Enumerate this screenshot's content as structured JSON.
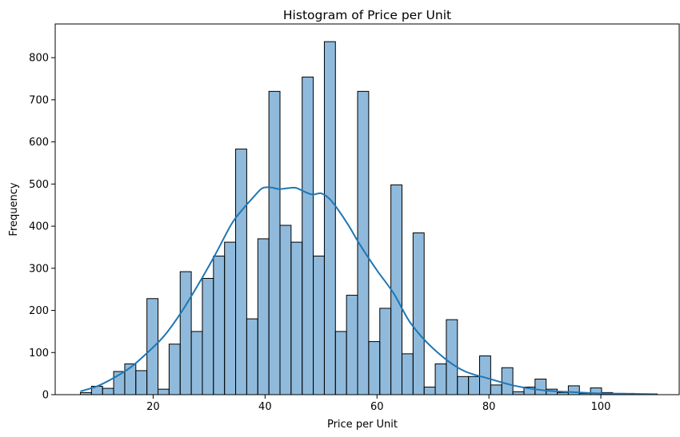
{
  "chart_data": {
    "type": "bar",
    "subtype": "histogram-with-kde",
    "title": "Histogram of Price per Unit",
    "xlabel": "Price per Unit",
    "ylabel": "Frequency",
    "xlim": [
      2.5,
      114
    ],
    "ylim": [
      0,
      880
    ],
    "xticks": [
      20,
      40,
      60,
      80,
      100
    ],
    "yticks": [
      0,
      100,
      200,
      300,
      400,
      500,
      600,
      700,
      800
    ],
    "grid": false,
    "legend": "none",
    "bar_color": "#4a8fc7",
    "bar_opacity": 0.62,
    "bar_edge_color": "#000000",
    "kde_color": "#1f77b4",
    "bins": {
      "start": 7.0,
      "width": 1.9815,
      "counts": [
        5,
        20,
        15,
        55,
        73,
        57,
        228,
        13,
        120,
        292,
        150,
        276,
        329,
        362,
        583,
        180,
        370,
        720,
        402,
        362,
        754,
        329,
        838,
        150,
        236,
        720,
        126,
        205,
        498,
        97,
        384,
        18,
        73,
        178,
        43,
        43,
        92,
        23,
        64,
        7,
        18,
        37,
        13,
        5,
        21,
        3,
        16,
        5,
        3,
        3,
        2,
        2
      ]
    },
    "kde": {
      "x": [
        7,
        10,
        13,
        16,
        19,
        22,
        25,
        28,
        31,
        34,
        36,
        38,
        39.5,
        41,
        42.5,
        44,
        45.5,
        47,
        48.5,
        50,
        51.5,
        53,
        55,
        57,
        60,
        63,
        66,
        70,
        75,
        80,
        85,
        90,
        95,
        100,
        105,
        110
      ],
      "y": [
        8,
        20,
        40,
        65,
        100,
        140,
        195,
        260,
        330,
        405,
        440,
        470,
        490,
        492,
        488,
        490,
        491,
        482,
        475,
        478,
        465,
        440,
        400,
        355,
        295,
        240,
        170,
        110,
        60,
        38,
        20,
        10,
        6,
        3,
        2,
        1
      ]
    }
  }
}
